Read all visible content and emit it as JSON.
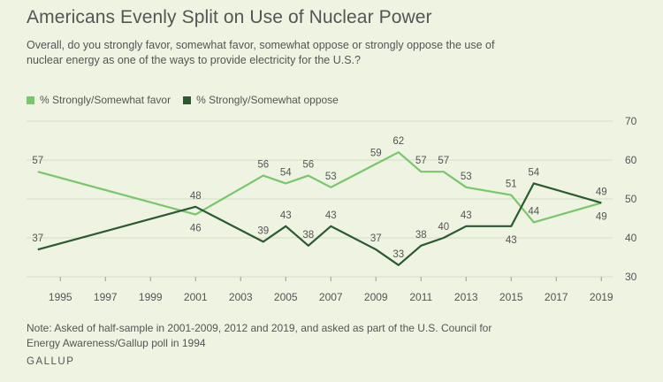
{
  "title": "Americans Evenly Split on Use of Nuclear Power",
  "subtitle": "Overall, do you strongly favor, somewhat favor, somewhat oppose or strongly oppose the use of nuclear energy as one of the ways to provide electricity for the U.S.?",
  "note": "Note: Asked of half-sample in 2001-2009, 2012 and 2019, and asked as part of the U.S. Council for Energy Awareness/Gallup poll in 1994",
  "source": "GALLUP",
  "colors": {
    "favor": "#79c76b",
    "oppose": "#2b5a32",
    "background": "#eef3e2",
    "grid": "#d4dcc5",
    "text": "#555555"
  },
  "chart_data": {
    "type": "line",
    "title": "Americans Evenly Split on Use of Nuclear Power",
    "xlabel": "",
    "ylabel": "",
    "xlim": [
      1993.5,
      2019.5
    ],
    "ylim": [
      30,
      70
    ],
    "x_ticks": [
      1995,
      1997,
      1999,
      2001,
      2003,
      2005,
      2007,
      2009,
      2011,
      2013,
      2015,
      2017,
      2019
    ],
    "y_ticks": [
      30,
      40,
      50,
      60,
      70
    ],
    "grid": "horizontal",
    "legend_position": "top-left",
    "series": [
      {
        "name": "% Strongly/Somewhat favor",
        "color": "#79c76b",
        "points": [
          {
            "x": 1994,
            "y": 57,
            "label": "57",
            "label_pos": "above"
          },
          {
            "x": 2001,
            "y": 46,
            "label": "46",
            "label_pos": "below"
          },
          {
            "x": 2004,
            "y": 56,
            "label": "56",
            "label_pos": "above"
          },
          {
            "x": 2005,
            "y": 54,
            "label": "54",
            "label_pos": "above"
          },
          {
            "x": 2006,
            "y": 56,
            "label": "56",
            "label_pos": "above"
          },
          {
            "x": 2007,
            "y": 53,
            "label": "53",
            "label_pos": "above"
          },
          {
            "x": 2009,
            "y": 59,
            "label": "59",
            "label_pos": "above"
          },
          {
            "x": 2010,
            "y": 62,
            "label": "62",
            "label_pos": "above"
          },
          {
            "x": 2011,
            "y": 57,
            "label": "57",
            "label_pos": "above"
          },
          {
            "x": 2012,
            "y": 57,
            "label": "57",
            "label_pos": "above"
          },
          {
            "x": 2013,
            "y": 53,
            "label": "53",
            "label_pos": "above"
          },
          {
            "x": 2015,
            "y": 51,
            "label": "51",
            "label_pos": "above"
          },
          {
            "x": 2016,
            "y": 44,
            "label": "44",
            "label_pos": "above"
          },
          {
            "x": 2019,
            "y": 49,
            "label": "49",
            "label_pos": "below"
          }
        ]
      },
      {
        "name": "% Strongly/Somewhat oppose",
        "color": "#2b5a32",
        "points": [
          {
            "x": 1994,
            "y": 37,
            "label": "37",
            "label_pos": "above"
          },
          {
            "x": 2001,
            "y": 48,
            "label": "48",
            "label_pos": "above"
          },
          {
            "x": 2004,
            "y": 39,
            "label": "39",
            "label_pos": "above"
          },
          {
            "x": 2005,
            "y": 43,
            "label": "43",
            "label_pos": "above"
          },
          {
            "x": 2006,
            "y": 38,
            "label": "38",
            "label_pos": "above"
          },
          {
            "x": 2007,
            "y": 43,
            "label": "43",
            "label_pos": "above"
          },
          {
            "x": 2009,
            "y": 37,
            "label": "37",
            "label_pos": "above"
          },
          {
            "x": 2010,
            "y": 33,
            "label": "33",
            "label_pos": "above"
          },
          {
            "x": 2011,
            "y": 38,
            "label": "38",
            "label_pos": "above"
          },
          {
            "x": 2012,
            "y": 40,
            "label": "40",
            "label_pos": "above"
          },
          {
            "x": 2013,
            "y": 43,
            "label": "43",
            "label_pos": "above"
          },
          {
            "x": 2015,
            "y": 43,
            "label": "43",
            "label_pos": "below"
          },
          {
            "x": 2016,
            "y": 54,
            "label": "54",
            "label_pos": "above"
          },
          {
            "x": 2019,
            "y": 49,
            "label": "49",
            "label_pos": "above"
          }
        ]
      }
    ]
  }
}
